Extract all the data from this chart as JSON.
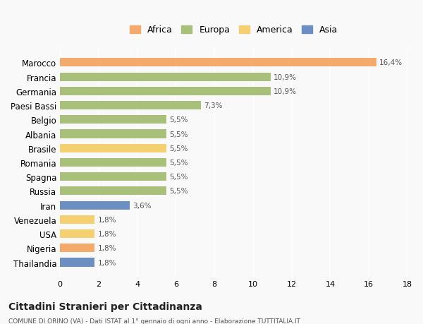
{
  "countries": [
    "Marocco",
    "Francia",
    "Germania",
    "Paesi Bassi",
    "Belgio",
    "Albania",
    "Brasile",
    "Romania",
    "Spagna",
    "Russia",
    "Iran",
    "Venezuela",
    "USA",
    "Nigeria",
    "Thailandia"
  ],
  "values": [
    16.4,
    10.9,
    10.9,
    7.3,
    5.5,
    5.5,
    5.5,
    5.5,
    5.5,
    5.5,
    3.6,
    1.8,
    1.8,
    1.8,
    1.8
  ],
  "labels": [
    "16,4%",
    "10,9%",
    "10,9%",
    "7,3%",
    "5,5%",
    "5,5%",
    "5,5%",
    "5,5%",
    "5,5%",
    "5,5%",
    "3,6%",
    "1,8%",
    "1,8%",
    "1,8%",
    "1,8%"
  ],
  "continents": [
    "Africa",
    "Europa",
    "Europa",
    "Europa",
    "Europa",
    "Europa",
    "America",
    "Europa",
    "Europa",
    "Europa",
    "Asia",
    "America",
    "America",
    "Africa",
    "Asia"
  ],
  "colors": {
    "Africa": "#F4A96D",
    "Europa": "#A8C07A",
    "America": "#F5D070",
    "Asia": "#6A8FC0"
  },
  "legend_order": [
    "Africa",
    "Europa",
    "America",
    "Asia"
  ],
  "title": "Cittadini Stranieri per Cittadinanza",
  "subtitle": "COMUNE DI ORINO (VA) - Dati ISTAT al 1° gennaio di ogni anno - Elaborazione TUTTITALIA.IT",
  "xlim": [
    0,
    18
  ],
  "xticks": [
    0,
    2,
    4,
    6,
    8,
    10,
    12,
    14,
    16,
    18
  ],
  "background_color": "#f9f9f9",
  "bar_background": "#eeeeee"
}
